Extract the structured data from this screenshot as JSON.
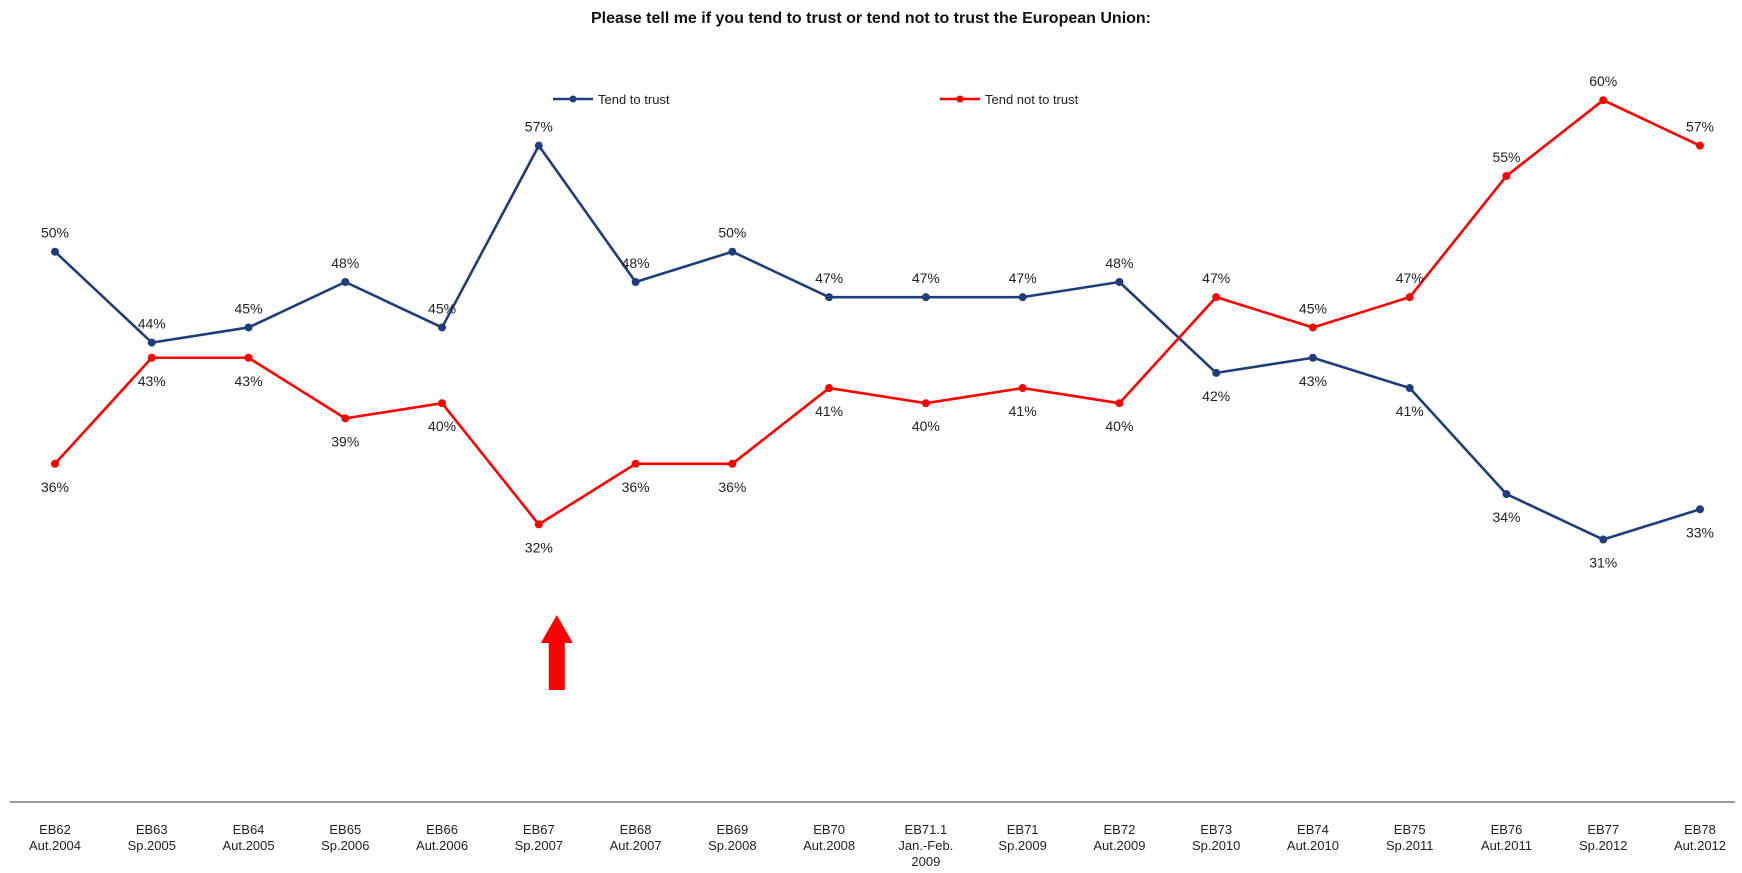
{
  "chart_data": {
    "type": "line",
    "title": "Please tell me if you tend to trust or tend not to trust the European Union:",
    "xlabel": "",
    "ylabel": "",
    "categories": [
      [
        "EB62",
        "Aut.2004"
      ],
      [
        "EB63",
        "Sp.2005"
      ],
      [
        "EB64",
        "Aut.2005"
      ],
      [
        "EB65",
        "Sp.2006"
      ],
      [
        "EB66",
        "Aut.2006"
      ],
      [
        "EB67",
        "Sp.2007"
      ],
      [
        "EB68",
        "Aut.2007"
      ],
      [
        "EB69",
        "Sp.2008"
      ],
      [
        "EB70",
        "Aut.2008"
      ],
      [
        "EB71.1",
        "Jan.-Feb.",
        "2009"
      ],
      [
        "EB71",
        "Sp.2009"
      ],
      [
        "EB72",
        "Aut.2009"
      ],
      [
        "EB73",
        "Sp.2010"
      ],
      [
        "EB74",
        "Aut.2010"
      ],
      [
        "EB75",
        "Sp.2011"
      ],
      [
        "EB76",
        "Aut.2011"
      ],
      [
        "EB77",
        "Sp.2012"
      ],
      [
        "EB78",
        "Aut.2012"
      ]
    ],
    "series": [
      {
        "name": "Tend to trust",
        "color": "#1f3d7a",
        "values": [
          50,
          44,
          45,
          48,
          45,
          57,
          48,
          50,
          47,
          47,
          47,
          48,
          42,
          43,
          41,
          34,
          31,
          33
        ]
      },
      {
        "name": "Tend not to trust",
        "color": "#ff0000",
        "values": [
          36,
          43,
          43,
          39,
          40,
          32,
          36,
          36,
          41,
          40,
          41,
          40,
          47,
          45,
          47,
          55,
          60,
          57
        ]
      }
    ],
    "value_suffix": "%",
    "legend_position": "top",
    "grid": false,
    "annotation": {
      "type": "up-arrow",
      "color": "#ff0000",
      "category_index": 5
    }
  }
}
